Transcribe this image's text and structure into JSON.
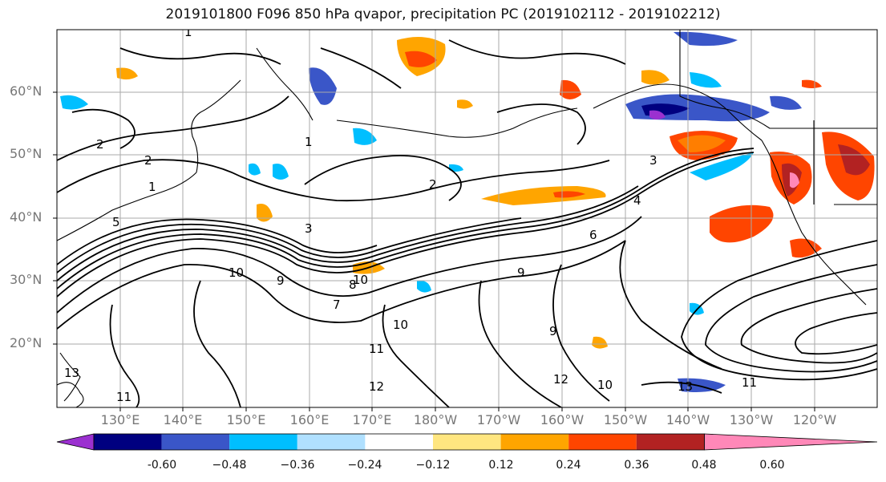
{
  "title": "2019101800 F096 850 hPa qvapor, precipitation PC (2019102112 - 2019102212)",
  "latitude_labels": [
    "60°N",
    "50°N",
    "40°N",
    "30°N",
    "20°N"
  ],
  "longitude_labels": [
    "130°E",
    "140°E",
    "150°E",
    "160°E",
    "170°E",
    "180°W",
    "170°W",
    "160°W",
    "150°W",
    "140°W",
    "130°W",
    "120°W"
  ],
  "colorbar": {
    "ticks": [
      "-0.60",
      "−0.48",
      "−0.36",
      "−0.24",
      "−0.12",
      "0.12",
      "0.24",
      "0.36",
      "0.48",
      "0.60"
    ],
    "colors": [
      "#9b30d0",
      "#000080",
      "#3a56c8",
      "#00bfff",
      "#b0e0ff",
      "#ffffff",
      "#ffe680",
      "#ffa500",
      "#ff4500",
      "#b22222",
      "#ff88b8"
    ]
  },
  "contour_labels": [
    "1",
    "1",
    "1",
    "2",
    "2",
    "2",
    "3",
    "3",
    "4",
    "5",
    "6",
    "7",
    "8",
    "9",
    "9",
    "9",
    "10",
    "10",
    "10",
    "10",
    "11",
    "11",
    "11",
    "12",
    "12",
    "13",
    "13"
  ]
}
